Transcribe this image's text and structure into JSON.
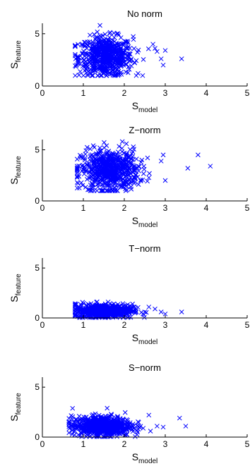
{
  "chart_data": [
    {
      "type": "scatter",
      "title": "No norm",
      "xlabel": {
        "main": "S",
        "sub": "model"
      },
      "ylabel": {
        "main": "S",
        "sub": "feature"
      },
      "xlim": [
        0,
        5
      ],
      "ylim": [
        0,
        6
      ],
      "xticks": [
        "0",
        "1",
        "2",
        "3",
        "4",
        "5"
      ],
      "yticks": [
        "0",
        "5"
      ],
      "marker": "x",
      "color": "#0000ff",
      "cluster": {
        "x_range": [
          0.8,
          2.6
        ],
        "x_center": 1.55,
        "x_spread": 0.33,
        "y_center": 2.8,
        "y_spread": 0.95,
        "y_range": [
          1.0,
          5.8
        ]
      },
      "outliers": [
        [
          2.75,
          3.6
        ],
        [
          2.8,
          3.3
        ],
        [
          2.9,
          2.6
        ],
        [
          3.0,
          3.4
        ],
        [
          3.4,
          2.6
        ],
        [
          2.95,
          2.0
        ],
        [
          2.7,
          4.0
        ]
      ]
    },
    {
      "type": "scatter",
      "title": "Z−norm",
      "xlabel": {
        "main": "S",
        "sub": "model"
      },
      "ylabel": {
        "main": "S",
        "sub": "feature"
      },
      "xlim": [
        0,
        5
      ],
      "ylim": [
        0,
        6
      ],
      "xticks": [
        "0",
        "1",
        "2",
        "3",
        "4",
        "5"
      ],
      "yticks": [
        "0",
        "5"
      ],
      "marker": "x",
      "color": "#0000ff",
      "cluster": {
        "x_range": [
          0.85,
          2.7
        ],
        "x_center": 1.65,
        "x_spread": 0.35,
        "y_center": 3.0,
        "y_spread": 1.0,
        "y_range": [
          1.0,
          5.8
        ]
      },
      "outliers": [
        [
          0.85,
          2.3
        ],
        [
          2.9,
          3.9
        ],
        [
          2.95,
          4.5
        ],
        [
          3.55,
          3.2
        ],
        [
          3.8,
          4.5
        ],
        [
          4.1,
          3.4
        ],
        [
          3.0,
          2.0
        ]
      ]
    },
    {
      "type": "scatter",
      "title": "T−norm",
      "xlabel": {
        "main": "S",
        "sub": "model"
      },
      "ylabel": {
        "main": "S",
        "sub": "feature"
      },
      "xlim": [
        0,
        5
      ],
      "ylim": [
        0,
        6
      ],
      "xticks": [
        "0",
        "1",
        "2",
        "3",
        "4",
        "5"
      ],
      "yticks": [
        "0",
        "5"
      ],
      "marker": "x",
      "color": "#0000ff",
      "cluster": {
        "x_range": [
          0.8,
          2.6
        ],
        "x_center": 1.5,
        "x_spread": 0.35,
        "y_center": 0.7,
        "y_spread": 0.35,
        "y_range": [
          0.05,
          1.9
        ]
      },
      "outliers": [
        [
          2.75,
          0.9
        ],
        [
          2.9,
          0.6
        ],
        [
          3.0,
          0.4
        ],
        [
          3.4,
          0.6
        ],
        [
          2.6,
          1.1
        ]
      ]
    },
    {
      "type": "scatter",
      "title": "S−norm",
      "xlabel": {
        "main": "S",
        "sub": "model"
      },
      "ylabel": {
        "main": "S",
        "sub": "feature"
      },
      "xlim": [
        0,
        5
      ],
      "ylim": [
        0,
        6
      ],
      "xticks": [
        "0",
        "1",
        "2",
        "3",
        "4",
        "5"
      ],
      "yticks": [
        "0",
        "5"
      ],
      "marker": "x",
      "color": "#0000ff",
      "cluster": {
        "x_range": [
          0.65,
          2.7
        ],
        "x_center": 1.45,
        "x_spread": 0.36,
        "y_center": 1.1,
        "y_spread": 0.5,
        "y_range": [
          0.05,
          2.9
        ]
      },
      "outliers": [
        [
          2.6,
          2.2
        ],
        [
          2.8,
          1.1
        ],
        [
          2.95,
          1.0
        ],
        [
          3.35,
          1.9
        ],
        [
          3.5,
          1.1
        ],
        [
          0.65,
          1.3
        ]
      ]
    }
  ]
}
